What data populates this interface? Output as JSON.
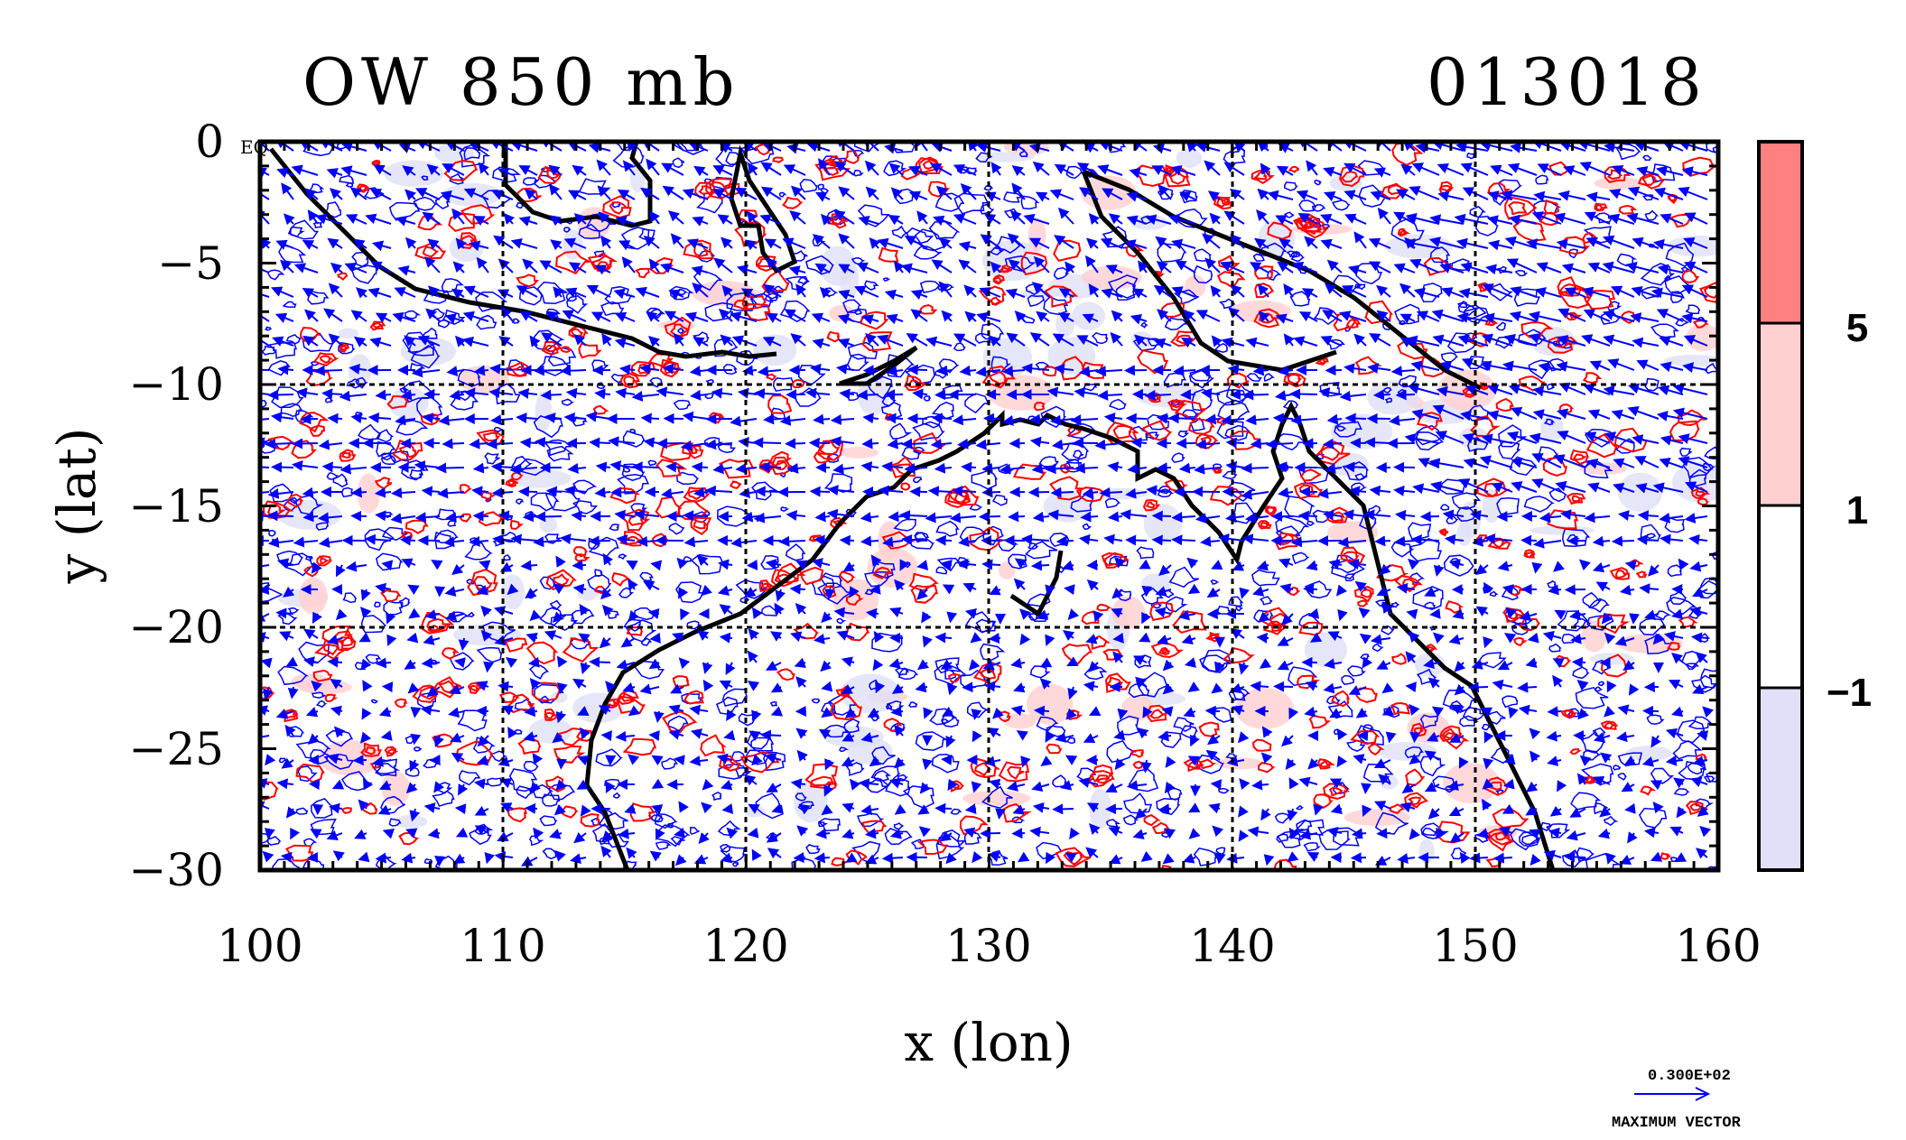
{
  "header": {
    "title": "OW 850 mb",
    "timestamp": "013018"
  },
  "axes": {
    "xlabel": "x (lon)",
    "ylabel": "y (lat)",
    "x_ticks": [
      "100",
      "110",
      "120",
      "130",
      "140",
      "150",
      "160"
    ],
    "y_ticks": [
      "0",
      "−5",
      "−10",
      "−15",
      "−20",
      "−25",
      "−30"
    ],
    "eq_marker": "EQ",
    "xlim": [
      100,
      160
    ],
    "ylim": [
      -30,
      0
    ]
  },
  "colorbar": {
    "levels": [
      "5",
      "1",
      "−1"
    ],
    "colors": [
      "#ff8080",
      "#ffd0d0",
      "#ffffff",
      "#e0e0f8"
    ]
  },
  "vector_key": {
    "magnitude": "0.300E+02",
    "caption": "MAXIMUM VECTOR"
  },
  "colors": {
    "vectors": "#0000ff",
    "positive_contour": "#ff0000",
    "negative_contour": "#0000ff",
    "coast": "#000000"
  }
}
